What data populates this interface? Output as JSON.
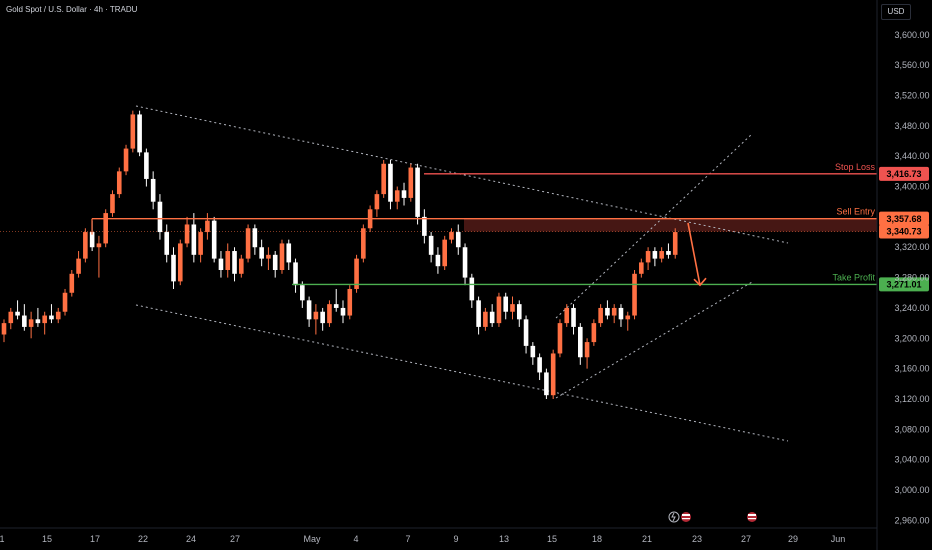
{
  "header": {
    "title": "Gold Spot / U.S. Dollar · 4h · TRADU",
    "currency": "USD"
  },
  "chart_data": {
    "type": "candlestick",
    "title": "Gold Spot / U.S. Dollar · 4h · TRADU",
    "ylim": [
      2950,
      3630
    ],
    "y_ticks": [
      "3,600.00",
      "3,560.00",
      "3,520.00",
      "3,480.00",
      "3,440.00",
      "3,400.00",
      "3,320.00",
      "3,280.00",
      "3,240.00",
      "3,200.00",
      "3,160.00",
      "3,120.00",
      "3,080.00",
      "3,040.00",
      "3,000.00",
      "2,960.00"
    ],
    "x_ticks": [
      "1",
      "15",
      "17",
      "22",
      "24",
      "27",
      "May",
      "4",
      "7",
      "9",
      "13",
      "15",
      "18",
      "21",
      "23",
      "27",
      "29",
      "Jun"
    ],
    "levels": [
      {
        "name": "Stop Loss",
        "value": 3416.73,
        "label": "3,416.73",
        "color": "#ef5350"
      },
      {
        "name": "Sell Entry",
        "value": 3357.68,
        "label": "3,357.68",
        "color": "#ff7043"
      },
      {
        "name": "Take Profit",
        "value": 3271.01,
        "label": "3,271.01",
        "color": "#4caf50"
      }
    ],
    "current_price": {
      "value": 3340.73,
      "label": "3,340.73",
      "color": "#ff7043"
    },
    "series": [
      {
        "x": 0,
        "o": 3205,
        "h": 3225,
        "l": 3195,
        "c": 3220
      },
      {
        "x": 1,
        "o": 3220,
        "h": 3240,
        "l": 3212,
        "c": 3235
      },
      {
        "x": 2,
        "o": 3235,
        "h": 3250,
        "l": 3225,
        "c": 3230
      },
      {
        "x": 3,
        "o": 3230,
        "h": 3245,
        "l": 3210,
        "c": 3215
      },
      {
        "x": 4,
        "o": 3215,
        "h": 3235,
        "l": 3200,
        "c": 3225
      },
      {
        "x": 5,
        "o": 3225,
        "h": 3240,
        "l": 3215,
        "c": 3220
      },
      {
        "x": 6,
        "o": 3220,
        "h": 3235,
        "l": 3205,
        "c": 3230
      },
      {
        "x": 7,
        "o": 3230,
        "h": 3245,
        "l": 3220,
        "c": 3225
      },
      {
        "x": 8,
        "o": 3225,
        "h": 3240,
        "l": 3220,
        "c": 3235
      },
      {
        "x": 9,
        "o": 3235,
        "h": 3265,
        "l": 3230,
        "c": 3260
      },
      {
        "x": 10,
        "o": 3260,
        "h": 3290,
        "l": 3255,
        "c": 3285
      },
      {
        "x": 11,
        "o": 3285,
        "h": 3315,
        "l": 3280,
        "c": 3305
      },
      {
        "x": 12,
        "o": 3305,
        "h": 3345,
        "l": 3300,
        "c": 3340
      },
      {
        "x": 13,
        "o": 3340,
        "h": 3355,
        "l": 3315,
        "c": 3320
      },
      {
        "x": 14,
        "o": 3320,
        "h": 3335,
        "l": 3280,
        "c": 3325
      },
      {
        "x": 15,
        "o": 3325,
        "h": 3370,
        "l": 3320,
        "c": 3365
      },
      {
        "x": 16,
        "o": 3365,
        "h": 3395,
        "l": 3360,
        "c": 3390
      },
      {
        "x": 17,
        "o": 3390,
        "h": 3425,
        "l": 3385,
        "c": 3420
      },
      {
        "x": 18,
        "o": 3420,
        "h": 3455,
        "l": 3415,
        "c": 3450
      },
      {
        "x": 19,
        "o": 3450,
        "h": 3500,
        "l": 3445,
        "c": 3495
      },
      {
        "x": 20,
        "o": 3495,
        "h": 3500,
        "l": 3440,
        "c": 3445
      },
      {
        "x": 21,
        "o": 3445,
        "h": 3450,
        "l": 3400,
        "c": 3410
      },
      {
        "x": 22,
        "o": 3410,
        "h": 3420,
        "l": 3370,
        "c": 3380
      },
      {
        "x": 23,
        "o": 3380,
        "h": 3390,
        "l": 3330,
        "c": 3340
      },
      {
        "x": 24,
        "o": 3340,
        "h": 3350,
        "l": 3300,
        "c": 3310
      },
      {
        "x": 25,
        "o": 3310,
        "h": 3320,
        "l": 3265,
        "c": 3275
      },
      {
        "x": 26,
        "o": 3275,
        "h": 3330,
        "l": 3270,
        "c": 3325
      },
      {
        "x": 27,
        "o": 3325,
        "h": 3360,
        "l": 3320,
        "c": 3350
      },
      {
        "x": 28,
        "o": 3350,
        "h": 3365,
        "l": 3300,
        "c": 3310
      },
      {
        "x": 29,
        "o": 3310,
        "h": 3345,
        "l": 3300,
        "c": 3340
      },
      {
        "x": 30,
        "o": 3340,
        "h": 3365,
        "l": 3330,
        "c": 3355
      },
      {
        "x": 31,
        "o": 3355,
        "h": 3360,
        "l": 3300,
        "c": 3305
      },
      {
        "x": 32,
        "o": 3305,
        "h": 3315,
        "l": 3280,
        "c": 3290
      },
      {
        "x": 33,
        "o": 3290,
        "h": 3325,
        "l": 3280,
        "c": 3315
      },
      {
        "x": 34,
        "o": 3315,
        "h": 3320,
        "l": 3275,
        "c": 3285
      },
      {
        "x": 35,
        "o": 3285,
        "h": 3310,
        "l": 3280,
        "c": 3305
      },
      {
        "x": 36,
        "o": 3305,
        "h": 3350,
        "l": 3300,
        "c": 3345
      },
      {
        "x": 37,
        "o": 3345,
        "h": 3350,
        "l": 3310,
        "c": 3320
      },
      {
        "x": 38,
        "o": 3320,
        "h": 3330,
        "l": 3295,
        "c": 3305
      },
      {
        "x": 39,
        "o": 3305,
        "h": 3320,
        "l": 3290,
        "c": 3310
      },
      {
        "x": 40,
        "o": 3310,
        "h": 3315,
        "l": 3280,
        "c": 3290
      },
      {
        "x": 41,
        "o": 3290,
        "h": 3330,
        "l": 3285,
        "c": 3325
      },
      {
        "x": 42,
        "o": 3325,
        "h": 3330,
        "l": 3290,
        "c": 3300
      },
      {
        "x": 43,
        "o": 3300,
        "h": 3305,
        "l": 3260,
        "c": 3270
      },
      {
        "x": 44,
        "o": 3270,
        "h": 3275,
        "l": 3240,
        "c": 3250
      },
      {
        "x": 45,
        "o": 3250,
        "h": 3255,
        "l": 3215,
        "c": 3225
      },
      {
        "x": 46,
        "o": 3225,
        "h": 3245,
        "l": 3205,
        "c": 3235
      },
      {
        "x": 47,
        "o": 3235,
        "h": 3240,
        "l": 3210,
        "c": 3220
      },
      {
        "x": 48,
        "o": 3220,
        "h": 3250,
        "l": 3215,
        "c": 3245
      },
      {
        "x": 49,
        "o": 3245,
        "h": 3265,
        "l": 3235,
        "c": 3240
      },
      {
        "x": 50,
        "o": 3240,
        "h": 3250,
        "l": 3220,
        "c": 3230
      },
      {
        "x": 51,
        "o": 3230,
        "h": 3270,
        "l": 3225,
        "c": 3265
      },
      {
        "x": 52,
        "o": 3265,
        "h": 3310,
        "l": 3260,
        "c": 3305
      },
      {
        "x": 53,
        "o": 3305,
        "h": 3350,
        "l": 3300,
        "c": 3345
      },
      {
        "x": 54,
        "o": 3345,
        "h": 3375,
        "l": 3340,
        "c": 3370
      },
      {
        "x": 55,
        "o": 3370,
        "h": 3395,
        "l": 3360,
        "c": 3390
      },
      {
        "x": 56,
        "o": 3390,
        "h": 3435,
        "l": 3385,
        "c": 3430
      },
      {
        "x": 57,
        "o": 3430,
        "h": 3435,
        "l": 3370,
        "c": 3380
      },
      {
        "x": 58,
        "o": 3380,
        "h": 3400,
        "l": 3370,
        "c": 3395
      },
      {
        "x": 59,
        "o": 3395,
        "h": 3405,
        "l": 3375,
        "c": 3385
      },
      {
        "x": 60,
        "o": 3385,
        "h": 3430,
        "l": 3380,
        "c": 3425
      },
      {
        "x": 61,
        "o": 3425,
        "h": 3430,
        "l": 3350,
        "c": 3360
      },
      {
        "x": 62,
        "o": 3360,
        "h": 3370,
        "l": 3325,
        "c": 3335
      },
      {
        "x": 63,
        "o": 3335,
        "h": 3340,
        "l": 3300,
        "c": 3310
      },
      {
        "x": 64,
        "o": 3310,
        "h": 3320,
        "l": 3285,
        "c": 3295
      },
      {
        "x": 65,
        "o": 3295,
        "h": 3335,
        "l": 3290,
        "c": 3330
      },
      {
        "x": 66,
        "o": 3330,
        "h": 3345,
        "l": 3325,
        "c": 3340
      },
      {
        "x": 67,
        "o": 3340,
        "h": 3350,
        "l": 3310,
        "c": 3320
      },
      {
        "x": 68,
        "o": 3320,
        "h": 3325,
        "l": 3270,
        "c": 3280
      },
      {
        "x": 69,
        "o": 3280,
        "h": 3285,
        "l": 3240,
        "c": 3250
      },
      {
        "x": 70,
        "o": 3250,
        "h": 3255,
        "l": 3205,
        "c": 3215
      },
      {
        "x": 71,
        "o": 3215,
        "h": 3240,
        "l": 3210,
        "c": 3235
      },
      {
        "x": 72,
        "o": 3235,
        "h": 3245,
        "l": 3215,
        "c": 3220
      },
      {
        "x": 73,
        "o": 3220,
        "h": 3260,
        "l": 3215,
        "c": 3255
      },
      {
        "x": 74,
        "o": 3255,
        "h": 3260,
        "l": 3225,
        "c": 3235
      },
      {
        "x": 75,
        "o": 3235,
        "h": 3255,
        "l": 3225,
        "c": 3245
      },
      {
        "x": 76,
        "o": 3245,
        "h": 3250,
        "l": 3215,
        "c": 3225
      },
      {
        "x": 77,
        "o": 3225,
        "h": 3230,
        "l": 3180,
        "c": 3190
      },
      {
        "x": 78,
        "o": 3190,
        "h": 3195,
        "l": 3165,
        "c": 3175
      },
      {
        "x": 79,
        "o": 3175,
        "h": 3180,
        "l": 3145,
        "c": 3155
      },
      {
        "x": 80,
        "o": 3155,
        "h": 3160,
        "l": 3120,
        "c": 3125
      },
      {
        "x": 81,
        "o": 3125,
        "h": 3185,
        "l": 3120,
        "c": 3180
      },
      {
        "x": 82,
        "o": 3180,
        "h": 3225,
        "l": 3175,
        "c": 3220
      },
      {
        "x": 83,
        "o": 3220,
        "h": 3245,
        "l": 3215,
        "c": 3240
      },
      {
        "x": 84,
        "o": 3240,
        "h": 3245,
        "l": 3205,
        "c": 3215
      },
      {
        "x": 85,
        "o": 3215,
        "h": 3220,
        "l": 3165,
        "c": 3175
      },
      {
        "x": 86,
        "o": 3175,
        "h": 3200,
        "l": 3160,
        "c": 3195
      },
      {
        "x": 87,
        "o": 3195,
        "h": 3225,
        "l": 3190,
        "c": 3220
      },
      {
        "x": 88,
        "o": 3220,
        "h": 3245,
        "l": 3215,
        "c": 3240
      },
      {
        "x": 89,
        "o": 3240,
        "h": 3250,
        "l": 3225,
        "c": 3230
      },
      {
        "x": 90,
        "o": 3230,
        "h": 3245,
        "l": 3220,
        "c": 3240
      },
      {
        "x": 91,
        "o": 3240,
        "h": 3245,
        "l": 3215,
        "c": 3225
      },
      {
        "x": 92,
        "o": 3225,
        "h": 3235,
        "l": 3210,
        "c": 3230
      },
      {
        "x": 93,
        "o": 3230,
        "h": 3290,
        "l": 3225,
        "c": 3285
      },
      {
        "x": 94,
        "o": 3285,
        "h": 3305,
        "l": 3280,
        "c": 3300
      },
      {
        "x": 95,
        "o": 3300,
        "h": 3320,
        "l": 3290,
        "c": 3315
      },
      {
        "x": 96,
        "o": 3315,
        "h": 3320,
        "l": 3295,
        "c": 3305
      },
      {
        "x": 97,
        "o": 3305,
        "h": 3320,
        "l": 3300,
        "c": 3315
      },
      {
        "x": 98,
        "o": 3315,
        "h": 3325,
        "l": 3305,
        "c": 3310
      },
      {
        "x": 99,
        "o": 3310,
        "h": 3345,
        "l": 3305,
        "c": 3340
      }
    ]
  },
  "annotations": {
    "stop_loss": "Stop Loss",
    "sell_entry": "Sell Entry",
    "take_profit": "Take Profit"
  }
}
